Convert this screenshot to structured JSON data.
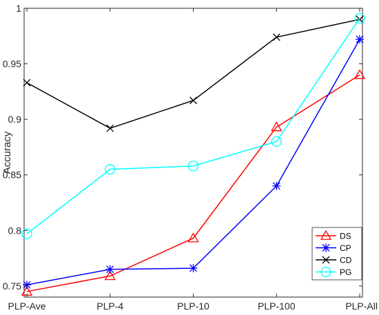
{
  "chart_data": {
    "type": "line",
    "title": "",
    "xlabel": "",
    "ylabel": "Accuracy",
    "categories": [
      "PLP-Ave",
      "PLP-4",
      "PLP-10",
      "PLP-100",
      "PLP-All"
    ],
    "ylim": [
      0.74,
      1.0
    ],
    "yticks": [
      0.75,
      0.8,
      0.85,
      0.9,
      0.95,
      1
    ],
    "ytick_labels": [
      "0.75",
      "0.8",
      "0.85",
      "0.9",
      "0.95",
      "1"
    ],
    "grid": false,
    "legend_position": "bottom-right",
    "series": [
      {
        "name": "DS",
        "color": "#ff0000",
        "marker": "triangle",
        "values": [
          0.745,
          0.759,
          0.793,
          0.893,
          0.94
        ]
      },
      {
        "name": "CP",
        "color": "#0000ff",
        "marker": "asterisk",
        "values": [
          0.751,
          0.765,
          0.766,
          0.84,
          0.972
        ]
      },
      {
        "name": "CD",
        "color": "#000000",
        "marker": "x",
        "values": [
          0.933,
          0.892,
          0.917,
          0.974,
          0.99
        ]
      },
      {
        "name": "PG",
        "color": "#00ffff",
        "marker": "circle",
        "values": [
          0.797,
          0.855,
          0.858,
          0.88,
          0.991
        ]
      }
    ]
  }
}
